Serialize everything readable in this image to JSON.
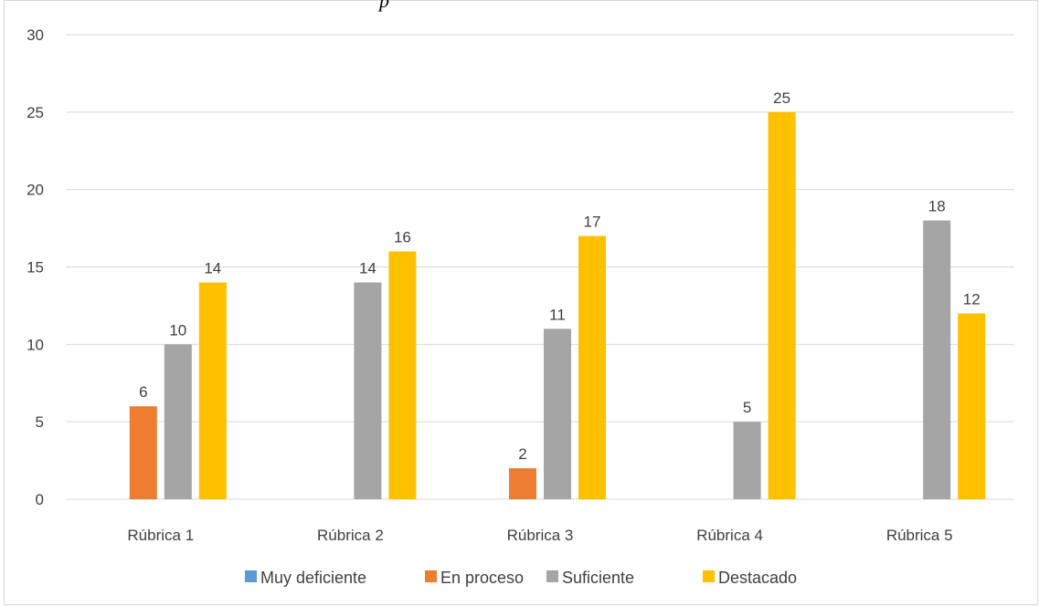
{
  "title_fragment": "p",
  "chart_data": {
    "type": "bar",
    "categories": [
      "Rúbrica 1",
      "Rúbrica 2",
      "Rúbrica 3",
      "Rúbrica 4",
      "Rúbrica 5"
    ],
    "series": [
      {
        "name": "Muy deficiente",
        "color": "#5b9bd5",
        "values": [
          0,
          0,
          0,
          0,
          0
        ]
      },
      {
        "name": "En proceso",
        "color": "#ed7d31",
        "values": [
          6,
          0,
          2,
          0,
          0
        ]
      },
      {
        "name": "Suficiente",
        "color": "#a5a5a5",
        "values": [
          10,
          14,
          11,
          5,
          18
        ]
      },
      {
        "name": "Destacado",
        "color": "#ffc000",
        "values": [
          14,
          16,
          17,
          25,
          12
        ]
      }
    ],
    "ylim": [
      0,
      30
    ],
    "yticks": [
      0,
      5,
      10,
      15,
      20,
      25,
      30
    ],
    "grid": true,
    "legend": "bottom",
    "data_labels": true
  }
}
